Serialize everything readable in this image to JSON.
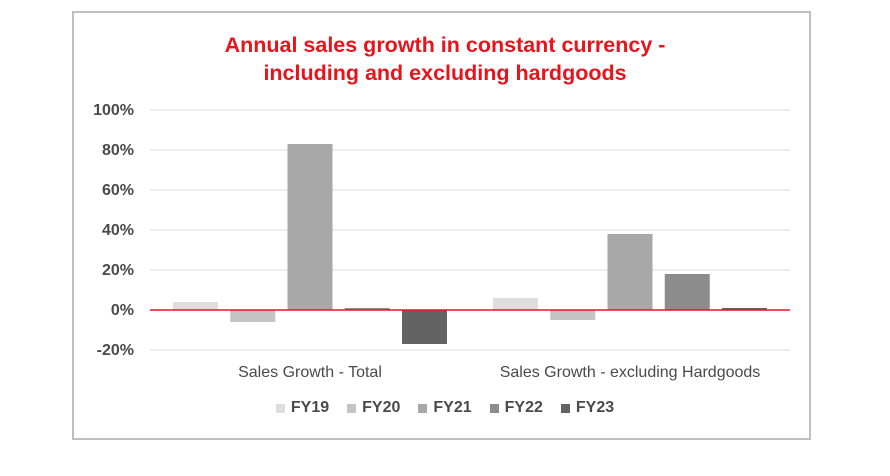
{
  "chart_data": {
    "type": "bar",
    "title_lines": [
      "Annual sales growth in constant currency -",
      "including and excluding hardgoods"
    ],
    "categories": [
      "Sales Growth - Total",
      "Sales Growth - excluding Hardgoods"
    ],
    "series": [
      {
        "name": "FY19",
        "values": [
          4,
          6
        ],
        "color": "#dedede"
      },
      {
        "name": "FY20",
        "values": [
          -6,
          -5
        ],
        "color": "#c4c4c4"
      },
      {
        "name": "FY21",
        "values": [
          83,
          38
        ],
        "color": "#a8a8a8"
      },
      {
        "name": "FY22",
        "values": [
          1,
          18
        ],
        "color": "#8c8c8c"
      },
      {
        "name": "FY23",
        "values": [
          -17,
          1
        ],
        "color": "#636363"
      }
    ],
    "ylim": [
      -20,
      100
    ],
    "yticks": [
      -20,
      0,
      20,
      40,
      60,
      80,
      100
    ],
    "ytick_labels": [
      "-20%",
      "0%",
      "20%",
      "40%",
      "60%",
      "80%",
      "100%"
    ],
    "grid": true,
    "zero_line_color": "#e8141b",
    "legend_position": "bottom"
  }
}
